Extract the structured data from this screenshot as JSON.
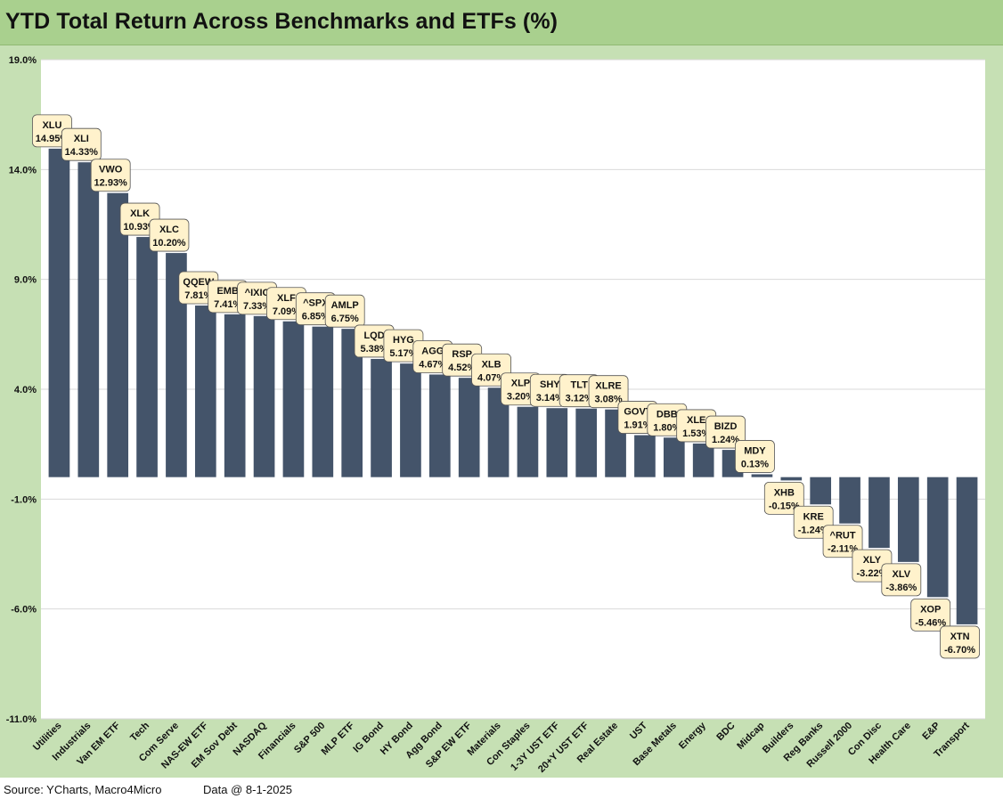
{
  "title": "YTD Total Return Across Benchmarks and ETFs (%)",
  "footer": {
    "source": "Source: YCharts, Macro4Micro",
    "as_of": "Data @ 8-1-2025"
  },
  "colors": {
    "bar": "#44546a",
    "label_bg": "#fff2cc",
    "frame": "#c6e0b4",
    "title_bar": "#a9d08e"
  },
  "chart_data": {
    "type": "bar",
    "title": "YTD Total Return Across Benchmarks and ETFs (%)",
    "ylim": [
      -11,
      19
    ],
    "yticks": [
      19,
      14,
      9,
      4,
      -1,
      -6,
      -11
    ],
    "ytick_labels": [
      "19.0%",
      "14.0%",
      "9.0%",
      "4.0%",
      "-1.0%",
      "-6.0%",
      "-11.0%"
    ],
    "grid": true,
    "categories": [
      "Utilities",
      "Industrials",
      "Van EM ETF",
      "Tech",
      "Com Serve",
      "NAS-EW ETF",
      "EM Sov Debt",
      "NASDAQ",
      "Financials",
      "S&P 500",
      "MLP ETF",
      "IG Bond",
      "HY Bond",
      "Agg Bond",
      "S&P EW ETF",
      "Materials",
      "Con Staples",
      "1-3Y UST ETF",
      "20+Y UST ETF",
      "Real Estate",
      "UST",
      "Base Metals",
      "Energy",
      "BDC",
      "Midcap",
      "Builders",
      "Reg Banks",
      "Russell 2000",
      "Con Disc",
      "Health Care",
      "E&P",
      "Transport"
    ],
    "tickers": [
      "XLU",
      "XLI",
      "VWO",
      "XLK",
      "XLC",
      "QQEW",
      "EMB",
      "^IXIC",
      "XLF",
      "^SPX",
      "AMLP",
      "LQD",
      "HYG",
      "AGG",
      "RSP",
      "XLB",
      "XLP",
      "SHY",
      "TLT",
      "XLRE",
      "GOVT",
      "DBB",
      "XLE",
      "BIZD",
      "MDY",
      "XHB",
      "KRE",
      "^RUT",
      "XLY",
      "XLV",
      "XOP",
      "XTN"
    ],
    "values": [
      14.95,
      14.33,
      12.93,
      10.93,
      10.2,
      7.81,
      7.41,
      7.33,
      7.09,
      6.85,
      6.75,
      5.38,
      5.17,
      4.67,
      4.52,
      4.07,
      3.2,
      3.14,
      3.12,
      3.08,
      1.91,
      1.8,
      1.53,
      1.24,
      0.13,
      -0.15,
      -1.24,
      -2.11,
      -3.22,
      -3.86,
      -5.46,
      -6.7
    ],
    "value_labels": [
      "14.95%",
      "14.33%",
      "12.93%",
      "10.93%",
      "10.20%",
      "7.81%",
      "7.41%",
      "7.33%",
      "7.09%",
      "6.85%",
      "6.75%",
      "5.38%",
      "5.17%",
      "4.67%",
      "4.52%",
      "4.07%",
      "3.20%",
      "3.14%",
      "3.12%",
      "3.08%",
      "1.91%",
      "1.80%",
      "1.53%",
      "1.24%",
      "0.13%",
      "-0.15%",
      "-1.24%",
      "-2.11%",
      "-3.22%",
      "-3.86%",
      "-5.46%",
      "-6.70%"
    ]
  }
}
